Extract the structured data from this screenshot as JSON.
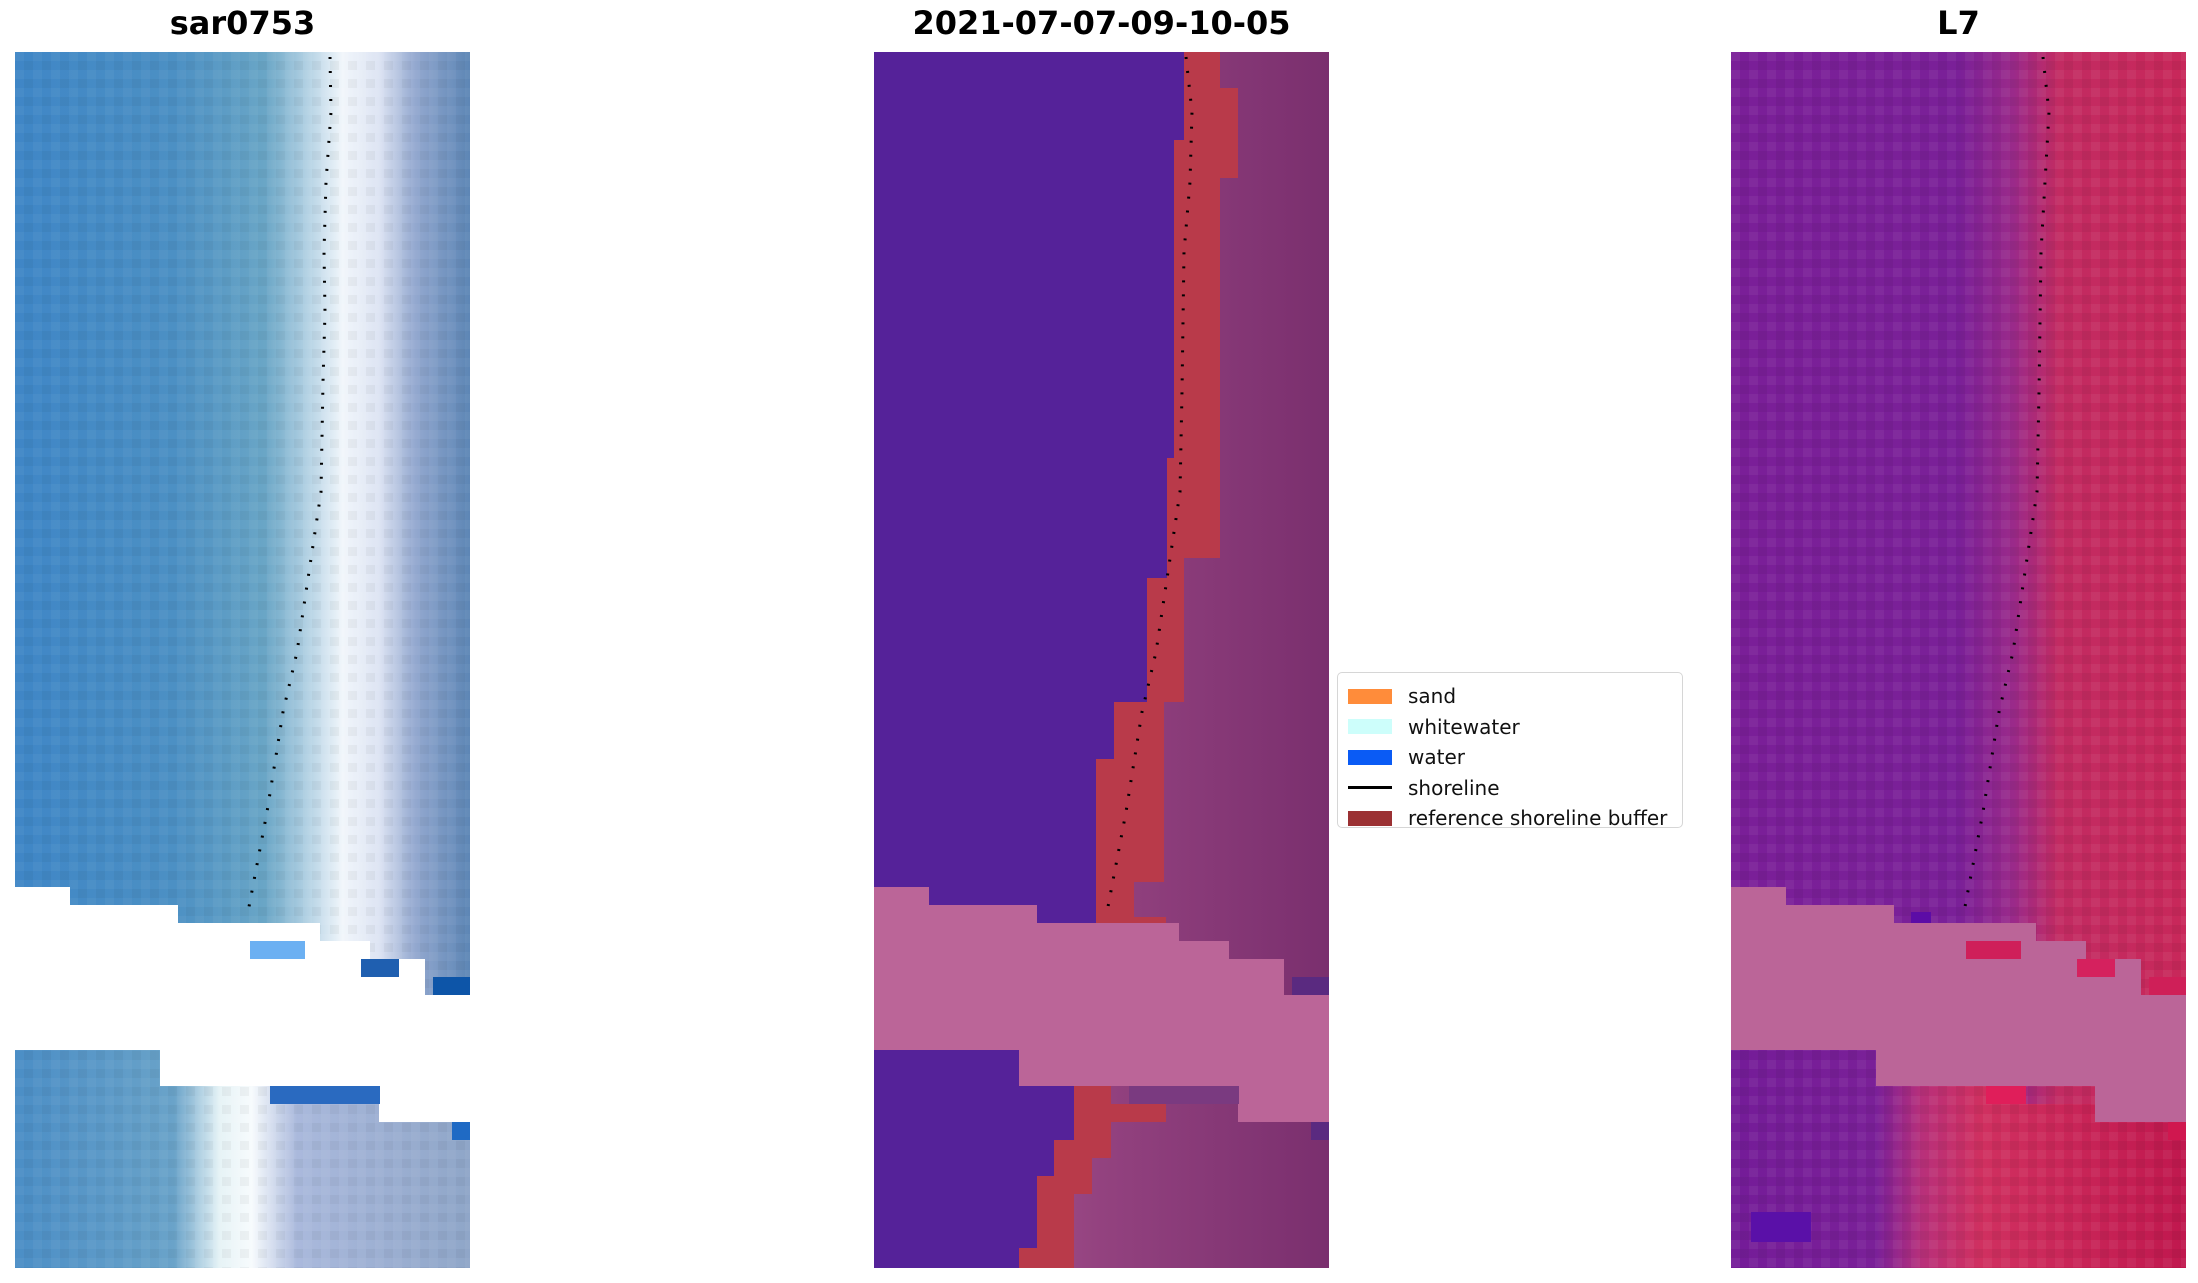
{
  "panels": {
    "rgb": {
      "title": "sar0753"
    },
    "class": {
      "title": "2021-07-07-09-10-05"
    },
    "index": {
      "title": "L7"
    }
  },
  "legend": {
    "items": [
      {
        "label": "sand",
        "color": "#ff8c3a"
      },
      {
        "label": "whitewater",
        "color": "#cdfefb"
      },
      {
        "label": "water",
        "color": "#0a5bf5"
      },
      {
        "label": "shoreline",
        "color": "#000000"
      },
      {
        "label": "reference shoreline buffer",
        "color": "#9b3133"
      }
    ]
  },
  "colors": {
    "rgb_water": "#4b8ec6",
    "rgb_surf": "#eef4fb",
    "rgb_land": "#6d8fbd",
    "class_water": "#552299",
    "class_buffer": "#b93a4a",
    "class_land": "#8a3a7a",
    "nodata": "#bb6598",
    "index_water": "#7a1e98",
    "index_land": "#c42a5a"
  }
}
